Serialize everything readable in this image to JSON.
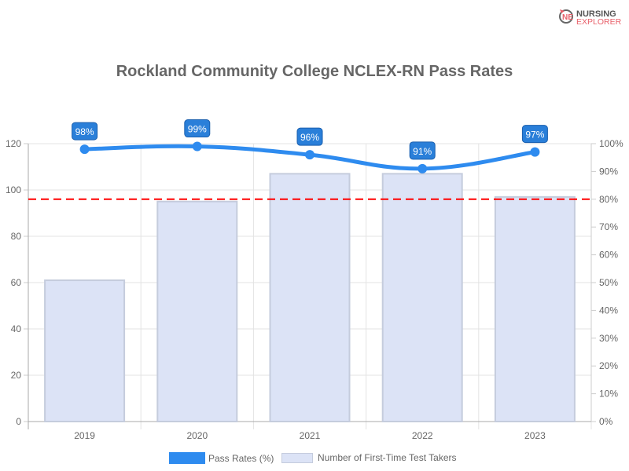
{
  "logo": {
    "line1": "NURSING",
    "line2": "EXPLORER"
  },
  "chart_data": {
    "type": "bar",
    "title": "Rockland Community College NCLEX-RN Pass Rates",
    "categories": [
      "2019",
      "2020",
      "2021",
      "2022",
      "2023"
    ],
    "series": [
      {
        "name": "Pass Rates (%)",
        "type": "line",
        "axis": "right",
        "values": [
          98,
          99,
          96,
          91,
          97
        ],
        "color": "#2E8BEF"
      },
      {
        "name": "Number of First-Time Test Takers",
        "type": "bar",
        "axis": "left",
        "values": [
          61,
          95,
          107,
          107,
          97
        ],
        "color": "#DCE3F6",
        "border": "#C5CCDD"
      }
    ],
    "left_axis": {
      "ylim": [
        0,
        120
      ],
      "ticks": [
        "0",
        "20",
        "40",
        "60",
        "80",
        "100",
        "120"
      ]
    },
    "right_axis": {
      "ylim": [
        0,
        100
      ],
      "ticks": [
        "0%",
        "10%",
        "20%",
        "30%",
        "40%",
        "50%",
        "60%",
        "70%",
        "80%",
        "90%",
        "100%"
      ]
    },
    "reference_line": {
      "value": 80,
      "axis": "right",
      "color": "#FF0000",
      "style": "dashed"
    },
    "data_labels": [
      "98%",
      "99%",
      "96%",
      "91%",
      "97%"
    ],
    "grid": true,
    "legend": "bottom"
  }
}
